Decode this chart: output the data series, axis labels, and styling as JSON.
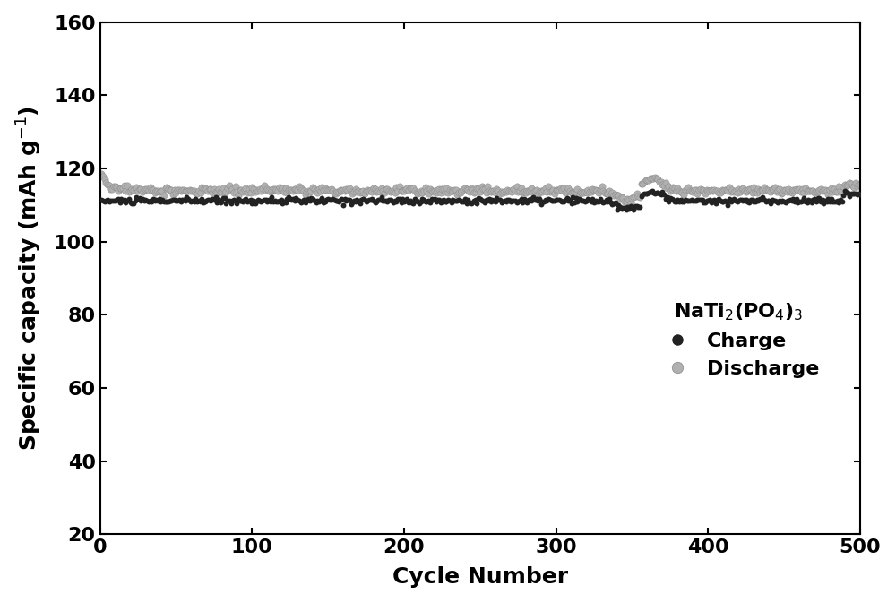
{
  "xlabel": "Cycle Number",
  "ylabel": "Specific capacity (mAh g$^{-1}$)",
  "xlim": [
    0,
    500
  ],
  "ylim": [
    20,
    160
  ],
  "yticks": [
    20,
    40,
    60,
    80,
    100,
    120,
    140,
    160
  ],
  "xticks": [
    0,
    100,
    200,
    300,
    400,
    500
  ],
  "charge_color": "#222222",
  "discharge_color": "#b0b0b0",
  "bg_color": "#ffffff",
  "legend_title": "NaTi$_2$(PO$_4$)$_3$",
  "legend_charge": "Charge",
  "legend_discharge": "Discharge",
  "charge_marker_size": 18,
  "discharge_marker_size": 28,
  "spine_linewidth": 1.5
}
